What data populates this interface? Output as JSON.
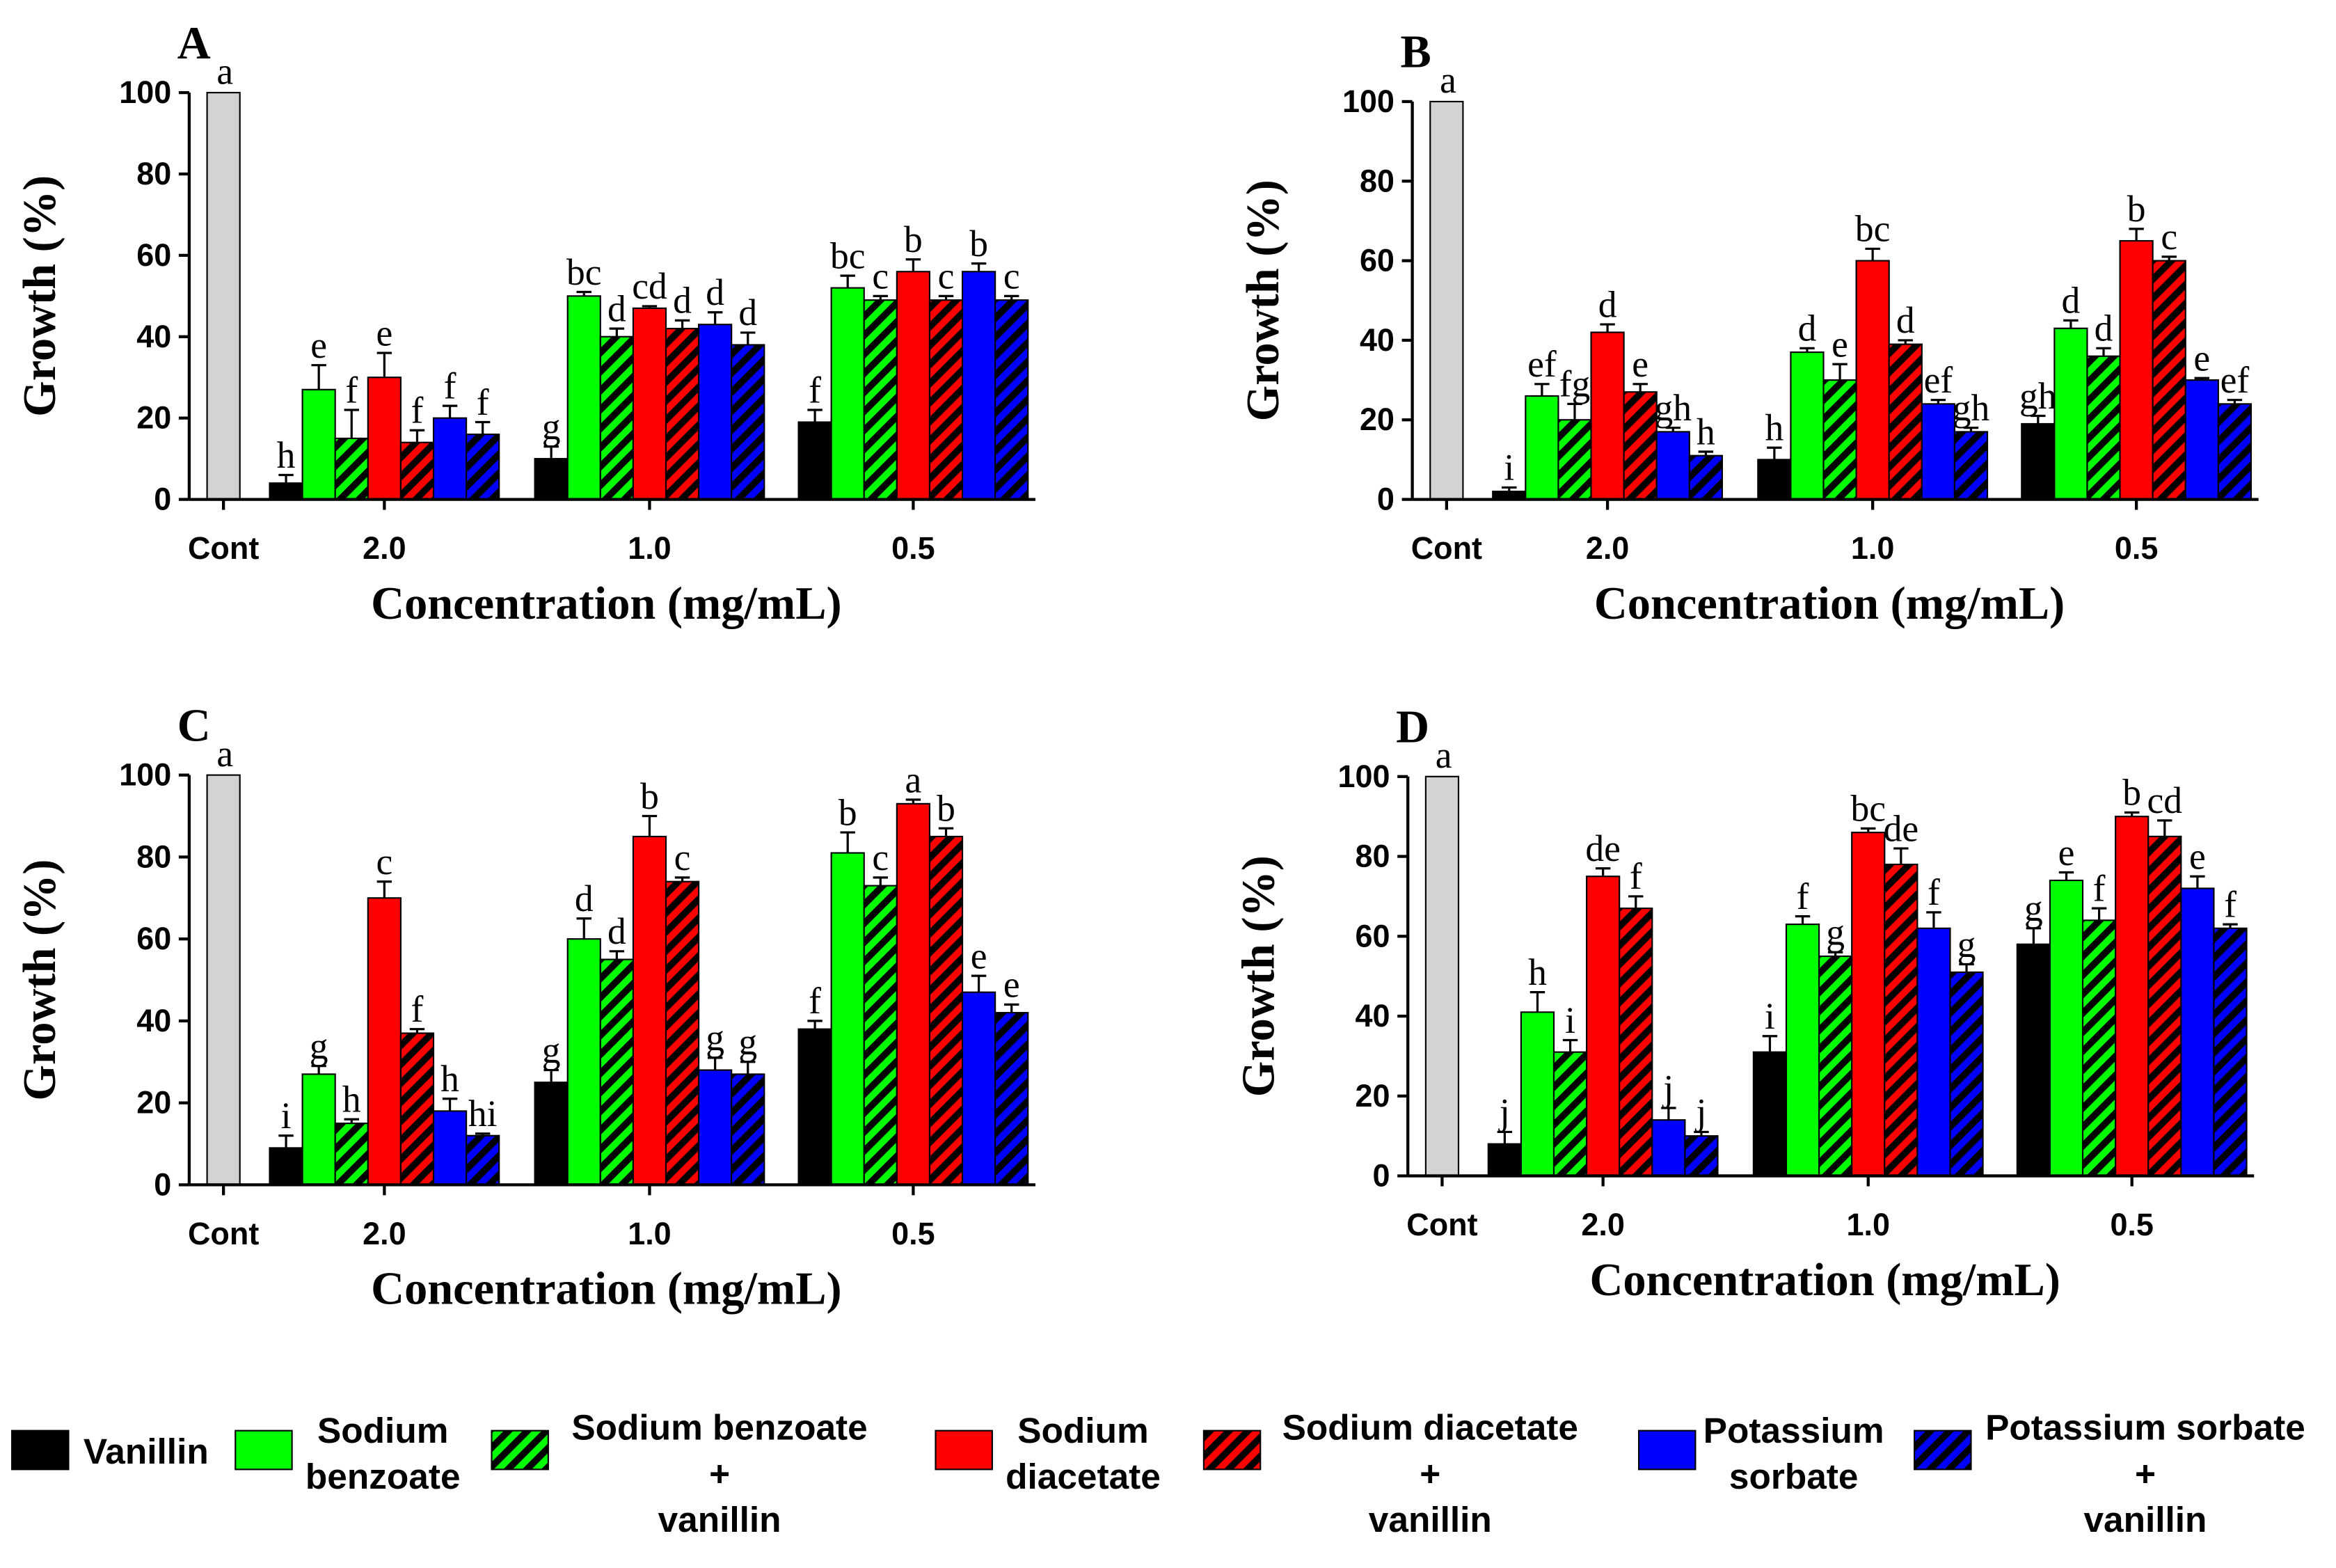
{
  "legend": [
    {
      "lines": [
        "Vanillin"
      ],
      "color": "#000000",
      "hatch": false
    },
    {
      "lines": [
        "Sodium",
        "benzoate"
      ],
      "color": "#00ff00",
      "hatch": false
    },
    {
      "lines": [
        "Sodium benzoate",
        "+",
        "vanillin"
      ],
      "color": "#00ff00",
      "hatch": true
    },
    {
      "lines": [
        "Sodium",
        "diacetate"
      ],
      "color": "#ff0000",
      "hatch": false
    },
    {
      "lines": [
        "Sodium diacetate",
        "+",
        "vanillin"
      ],
      "color": "#ff0000",
      "hatch": true
    },
    {
      "lines": [
        "Potassium",
        "sorbate"
      ],
      "color": "#0000ff",
      "hatch": false
    },
    {
      "lines": [
        "Potassium sorbate",
        "+",
        "vanillin"
      ],
      "color": "#0000ff",
      "hatch": true
    }
  ],
  "chart_data": [
    {
      "type": "bar",
      "title": "A",
      "y_label": "Growth (%)",
      "x_label": "Concentration (mg/mL)",
      "control": {
        "category": "Cont",
        "value": 100,
        "letter": "a",
        "color": "#d3d3d3"
      },
      "categories": [
        "2.0",
        "1.0",
        "0.5"
      ],
      "ylim": [
        0,
        100
      ],
      "yticks": [
        0,
        20,
        40,
        60,
        80,
        100
      ],
      "series": [
        {
          "values": [
            4,
            10,
            19
          ],
          "errors": [
            2,
            3,
            3
          ],
          "letters": [
            "h",
            "g",
            "f"
          ]
        },
        {
          "values": [
            27,
            50,
            52
          ],
          "errors": [
            6,
            1,
            3
          ],
          "letters": [
            "e",
            "bc",
            "bc"
          ]
        },
        {
          "values": [
            15,
            40,
            49
          ],
          "errors": [
            7,
            2,
            1
          ],
          "letters": [
            "f",
            "d",
            "c"
          ]
        },
        {
          "values": [
            30,
            47,
            56
          ],
          "errors": [
            6,
            0.5,
            3
          ],
          "letters": [
            "e",
            "cd",
            "b"
          ]
        },
        {
          "values": [
            14,
            42,
            49
          ],
          "errors": [
            3,
            2,
            1
          ],
          "letters": [
            "f",
            "d",
            "c"
          ]
        },
        {
          "values": [
            20,
            43,
            56
          ],
          "errors": [
            3,
            3,
            2
          ],
          "letters": [
            "f",
            "d",
            "b"
          ]
        },
        {
          "values": [
            16,
            38,
            49
          ],
          "errors": [
            3,
            3,
            1
          ],
          "letters": [
            "f",
            "d",
            "c"
          ]
        }
      ]
    },
    {
      "type": "bar",
      "title": "B",
      "y_label": "Growth (%)",
      "x_label": "Concentration (mg/mL)",
      "control": {
        "category": "Cont",
        "value": 100,
        "letter": "a",
        "color": "#d3d3d3"
      },
      "categories": [
        "2.0",
        "1.0",
        "0.5"
      ],
      "ylim": [
        0,
        100
      ],
      "yticks": [
        0,
        20,
        40,
        60,
        80,
        100
      ],
      "series": [
        {
          "values": [
            2,
            10,
            19
          ],
          "errors": [
            1,
            3,
            2
          ],
          "letters": [
            "i",
            "h",
            "gh"
          ]
        },
        {
          "values": [
            26,
            37,
            43
          ],
          "errors": [
            3,
            1,
            2
          ],
          "letters": [
            "ef",
            "d",
            "d"
          ]
        },
        {
          "values": [
            20,
            30,
            36
          ],
          "errors": [
            4,
            4,
            2
          ],
          "letters": [
            "fg",
            "e",
            "d"
          ]
        },
        {
          "values": [
            42,
            60,
            65
          ],
          "errors": [
            2,
            3,
            3
          ],
          "letters": [
            "d",
            "bc",
            "b"
          ]
        },
        {
          "values": [
            27,
            39,
            60
          ],
          "errors": [
            2,
            1,
            1
          ],
          "letters": [
            "e",
            "d",
            "c"
          ]
        },
        {
          "values": [
            17,
            24,
            30
          ],
          "errors": [
            1,
            1,
            0.5
          ],
          "letters": [
            "gh",
            "ef",
            "e"
          ]
        },
        {
          "values": [
            11,
            17,
            24
          ],
          "errors": [
            1,
            1,
            1
          ],
          "letters": [
            "h",
            "gh",
            "ef"
          ]
        }
      ]
    },
    {
      "type": "bar",
      "title": "C",
      "y_label": "Growth (%)",
      "x_label": "Concentration (mg/mL)",
      "control": {
        "category": "Cont",
        "value": 100,
        "letter": "a",
        "color": "#d3d3d3"
      },
      "categories": [
        "2.0",
        "1.0",
        "0.5"
      ],
      "ylim": [
        0,
        100
      ],
      "yticks": [
        0,
        20,
        40,
        60,
        80,
        100
      ],
      "series": [
        {
          "values": [
            9,
            25,
            38
          ],
          "errors": [
            3,
            3,
            2
          ],
          "letters": [
            "i",
            "g",
            "f"
          ]
        },
        {
          "values": [
            27,
            60,
            81
          ],
          "errors": [
            2,
            5,
            5
          ],
          "letters": [
            "g",
            "d",
            "b"
          ]
        },
        {
          "values": [
            15,
            55,
            73
          ],
          "errors": [
            1,
            2,
            2
          ],
          "letters": [
            "h",
            "d",
            "c"
          ]
        },
        {
          "values": [
            70,
            85,
            93
          ],
          "errors": [
            4,
            5,
            1
          ],
          "letters": [
            "c",
            "b",
            "a"
          ]
        },
        {
          "values": [
            37,
            74,
            85
          ],
          "errors": [
            1,
            1,
            2
          ],
          "letters": [
            "f",
            "c",
            "b"
          ]
        },
        {
          "values": [
            18,
            28,
            47
          ],
          "errors": [
            3,
            3,
            4
          ],
          "letters": [
            "h",
            "g",
            "e"
          ]
        },
        {
          "values": [
            12,
            27,
            42
          ],
          "errors": [
            0.5,
            3,
            2
          ],
          "letters": [
            "hi",
            "g",
            "e"
          ]
        }
      ]
    },
    {
      "type": "bar",
      "title": "D",
      "y_label": "Growth (%)",
      "x_label": "Concentration (mg/mL)",
      "control": {
        "category": "Cont",
        "value": 100,
        "letter": "a",
        "color": "#d3d3d3"
      },
      "categories": [
        "2.0",
        "1.0",
        "0.5"
      ],
      "ylim": [
        0,
        100
      ],
      "yticks": [
        0,
        20,
        40,
        60,
        80,
        100
      ],
      "series": [
        {
          "values": [
            8,
            31,
            58
          ],
          "errors": [
            3,
            4,
            4
          ],
          "letters": [
            "j",
            "i",
            "g"
          ]
        },
        {
          "values": [
            41,
            63,
            74
          ],
          "errors": [
            5,
            2,
            2
          ],
          "letters": [
            "h",
            "f",
            "e"
          ]
        },
        {
          "values": [
            31,
            55,
            64
          ],
          "errors": [
            3,
            1,
            3
          ],
          "letters": [
            "i",
            "g",
            "f"
          ]
        },
        {
          "values": [
            75,
            86,
            90
          ],
          "errors": [
            2,
            1,
            1
          ],
          "letters": [
            "de",
            "bc",
            "b"
          ]
        },
        {
          "values": [
            67,
            78,
            85
          ],
          "errors": [
            3,
            4,
            4
          ],
          "letters": [
            "f",
            "de",
            "cd"
          ]
        },
        {
          "values": [
            14,
            62,
            72
          ],
          "errors": [
            3,
            4,
            3
          ],
          "letters": [
            "j",
            "f",
            "e"
          ]
        },
        {
          "values": [
            10,
            51,
            62
          ],
          "errors": [
            1,
            2,
            1
          ],
          "letters": [
            "j",
            "g",
            "f"
          ]
        }
      ]
    }
  ]
}
